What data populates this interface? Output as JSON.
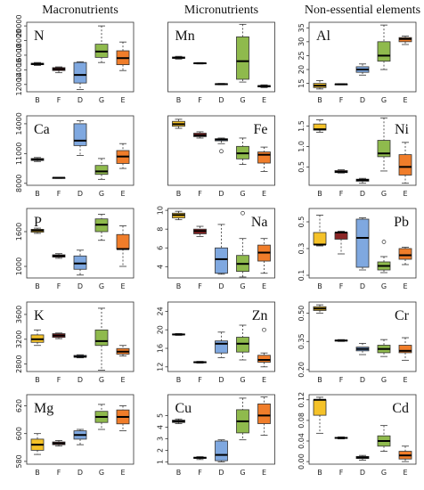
{
  "column_titles": [
    "Macronutrients",
    "Micronutrients",
    "Non-essential elements"
  ],
  "chart_data": [
    {
      "type": "box",
      "title": "N",
      "label_position": "left",
      "categories": [
        "B",
        "F",
        "D",
        "G",
        "E"
      ],
      "colors": [
        "#f5c228",
        "#8b2525",
        "#7fa8e0",
        "#8fba4d",
        "#f07d2a"
      ],
      "min": [
        14600,
        13600,
        11300,
        15000,
        13900
      ],
      "q1": [
        14700,
        13900,
        12200,
        15700,
        14700
      ],
      "median": [
        14800,
        14100,
        13300,
        16500,
        15600
      ],
      "q3": [
        14900,
        14300,
        15000,
        17500,
        16600
      ],
      "max": [
        15000,
        14400,
        15100,
        20000,
        17800
      ],
      "ylim": [
        11000,
        20500
      ],
      "yticks": [
        12000,
        14000,
        16000,
        18000,
        20000
      ]
    },
    {
      "type": "box",
      "title": "Ca",
      "label_position": "left",
      "categories": [
        "B",
        "F",
        "D",
        "G",
        "E"
      ],
      "colors": [
        "#f5c228",
        "#8b2525",
        "#7fa8e0",
        "#8fba4d",
        "#f07d2a"
      ],
      "min": [
        10200,
        8500,
        10800,
        8400,
        9500
      ],
      "q1": [
        10300,
        8540,
        11800,
        8900,
        10000
      ],
      "median": [
        10400,
        8560,
        12300,
        9200,
        10700
      ],
      "q3": [
        10500,
        8580,
        14000,
        9800,
        11300
      ],
      "max": [
        10600,
        8600,
        14300,
        10500,
        12000
      ],
      "ylim": [
        7800,
        14800
      ],
      "yticks": [
        8000,
        11000,
        14000
      ]
    },
    {
      "type": "box",
      "title": "P",
      "label_position": "left",
      "categories": [
        "B",
        "F",
        "D",
        "G",
        "E"
      ],
      "colors": [
        "#f5c228",
        "#8b2525",
        "#7fa8e0",
        "#8fba4d",
        "#f07d2a"
      ],
      "min": [
        1570,
        1140,
        850,
        1450,
        1000
      ],
      "q1": [
        1590,
        1160,
        950,
        1600,
        1300
      ],
      "median": [
        1620,
        1180,
        1050,
        1720,
        1300
      ],
      "q3": [
        1640,
        1200,
        1180,
        1820,
        1550
      ],
      "max": [
        1660,
        1220,
        1280,
        1900,
        1700
      ],
      "ylim": [
        800,
        2000
      ],
      "yticks": [
        1000,
        1600
      ]
    },
    {
      "type": "box",
      "title": "K",
      "label_position": "left",
      "categories": [
        "B",
        "F",
        "D",
        "G",
        "E"
      ],
      "colors": [
        "#f5c228",
        "#8b2525",
        "#7fa8e0",
        "#8fba4d",
        "#f07d2a"
      ],
      "min": [
        3100,
        3210,
        2900,
        2700,
        2930
      ],
      "q1": [
        3150,
        3230,
        2910,
        3100,
        2960
      ],
      "median": [
        3200,
        3260,
        2920,
        3170,
        3000
      ],
      "q3": [
        3270,
        3290,
        2940,
        3350,
        3050
      ],
      "max": [
        3350,
        3300,
        2950,
        3700,
        3100
      ],
      "ylim": [
        2680,
        3800
      ],
      "yticks": [
        2800,
        3200,
        3600
      ]
    },
    {
      "type": "box",
      "title": "Mg",
      "label_position": "left",
      "categories": [
        "B",
        "F",
        "D",
        "G",
        "E"
      ],
      "colors": [
        "#f5c228",
        "#8b2525",
        "#7fa8e0",
        "#8fba4d",
        "#f07d2a"
      ],
      "min": [
        585,
        591,
        592,
        603,
        602
      ],
      "q1": [
        588,
        592,
        596,
        608,
        607
      ],
      "median": [
        592,
        593,
        599,
        612,
        612
      ],
      "q3": [
        596,
        594,
        602,
        616,
        617
      ],
      "max": [
        600,
        595,
        603,
        621,
        620
      ],
      "ylim": [
        578,
        628
      ],
      "yticks": [
        580,
        600,
        620
      ]
    },
    {
      "type": "box",
      "title": "Mn",
      "label_position": "left",
      "categories": [
        "B",
        "F",
        "D",
        "G",
        "E"
      ],
      "colors": [
        "#f5c228",
        "#8b2525",
        "#7fa8e0",
        "#8fba4d",
        "#f07d2a"
      ],
      "min": [
        47,
        40,
        10,
        14,
        6
      ],
      "q1": [
        48,
        41,
        10.5,
        18,
        7
      ],
      "median": [
        49,
        41,
        11,
        44,
        8
      ],
      "q3": [
        50,
        41.5,
        11.5,
        79,
        9
      ],
      "max": [
        51,
        42,
        12,
        97,
        10
      ],
      "ylim": [
        0,
        100
      ]
    },
    {
      "type": "box",
      "title": "Fe",
      "label_position": "right",
      "categories": [
        "B",
        "F",
        "D",
        "G",
        "E"
      ],
      "colors": [
        "#f5c228",
        "#8b2525",
        "#7fa8e0",
        "#8fba4d",
        "#f07d2a"
      ],
      "min": [
        82,
        68,
        60,
        30,
        20
      ],
      "q1": [
        85,
        70,
        64,
        38,
        32
      ],
      "median": [
        88,
        72,
        66,
        46,
        44
      ],
      "q3": [
        92,
        75,
        67,
        56,
        48
      ],
      "max": [
        95,
        77,
        68,
        68,
        55
      ],
      "outliers": [
        [],
        [],
        [
          49
        ],
        [],
        []
      ],
      "ylim": [
        0,
        100
      ]
    },
    {
      "type": "box",
      "title": "Na",
      "label_position": "right",
      "categories": [
        "B",
        "F",
        "D",
        "G",
        "E"
      ],
      "colors": [
        "#f5c228",
        "#8b2525",
        "#7fa8e0",
        "#8fba4d",
        "#f07d2a"
      ],
      "min": [
        9,
        7.2,
        3.2,
        2.9,
        3.3
      ],
      "q1": [
        9.2,
        7.5,
        3.3,
        3.5,
        4.6
      ],
      "median": [
        9.5,
        7.8,
        4.8,
        4.3,
        5.5
      ],
      "q3": [
        9.7,
        8,
        6,
        5.2,
        6.3
      ],
      "max": [
        9.9,
        8.3,
        8.5,
        7,
        7
      ],
      "outliers": [
        [],
        [],
        [],
        [
          9.7
        ],
        []
      ],
      "ylim": [
        2.8,
        10.2
      ],
      "yticks": [
        4,
        6,
        8,
        10
      ]
    },
    {
      "type": "box",
      "title": "Zn",
      "label_position": "right",
      "categories": [
        "B",
        "F",
        "D",
        "G",
        "E"
      ],
      "colors": [
        "#f5c228",
        "#8b2525",
        "#7fa8e0",
        "#8fba4d",
        "#f07d2a"
      ],
      "min": [
        18.8,
        12.8,
        14,
        13.5,
        12
      ],
      "q1": [
        18.9,
        12.9,
        15,
        15.2,
        13
      ],
      "median": [
        19,
        13,
        17,
        17,
        13.5
      ],
      "q3": [
        19.1,
        13.1,
        17.6,
        18.4,
        14.5
      ],
      "max": [
        19.2,
        13.2,
        19.5,
        21,
        15
      ],
      "outliers": [
        [],
        [],
        [],
        [],
        [
          20
        ]
      ],
      "ylim": [
        11,
        26
      ],
      "yticks": [
        12,
        16,
        20,
        24
      ]
    },
    {
      "type": "box",
      "title": "Cu",
      "label_position": "left",
      "categories": [
        "B",
        "F",
        "D",
        "G",
        "E"
      ],
      "colors": [
        "#f5c228",
        "#8b2525",
        "#7fa8e0",
        "#8fba4d",
        "#f07d2a"
      ],
      "min": [
        4.3,
        1.2,
        1,
        2.9,
        3.3
      ],
      "q1": [
        4.4,
        1.3,
        1.1,
        3.5,
        4.3
      ],
      "median": [
        4.5,
        1.35,
        1.6,
        4.5,
        5
      ],
      "q3": [
        4.6,
        1.4,
        2.8,
        5.5,
        6
      ],
      "max": [
        4.7,
        1.45,
        2.9,
        6.5,
        6.6
      ],
      "ylim": [
        0.8,
        6.8
      ],
      "yticks": [
        1,
        2,
        3,
        4,
        5
      ]
    },
    {
      "type": "box",
      "title": "Al",
      "label_position": "left",
      "categories": [
        "B",
        "F",
        "D",
        "G",
        "E"
      ],
      "colors": [
        "#f5c228",
        "#8b2525",
        "#7fa8e0",
        "#8fba4d",
        "#f07d2a"
      ],
      "min": [
        13,
        14.5,
        18,
        20,
        29
      ],
      "q1": [
        13.5,
        14.6,
        19,
        23,
        30
      ],
      "median": [
        14.2,
        14.7,
        20,
        25,
        31
      ],
      "q3": [
        15,
        14.8,
        21,
        30,
        31.5
      ],
      "max": [
        16,
        14.9,
        22,
        36,
        32
      ],
      "ylim": [
        12,
        37
      ],
      "yticks": [
        15,
        20,
        25,
        30,
        35
      ]
    },
    {
      "type": "box",
      "title": "Ni",
      "label_position": "right",
      "categories": [
        "B",
        "F",
        "D",
        "G",
        "E"
      ],
      "colors": [
        "#f5c228",
        "#8b2525",
        "#7fa8e0",
        "#8fba4d",
        "#f07d2a"
      ],
      "min": [
        1.35,
        0.35,
        0.1,
        0.4,
        0.1
      ],
      "q1": [
        1.4,
        0.36,
        0.15,
        0.75,
        0.3
      ],
      "median": [
        1.42,
        0.38,
        0.18,
        0.83,
        0.5
      ],
      "q3": [
        1.55,
        0.41,
        0.2,
        1.15,
        0.8
      ],
      "max": [
        1.65,
        0.43,
        0.22,
        1.7,
        1.1
      ],
      "ylim": [
        0.05,
        1.75
      ],
      "yticks": [
        0.5,
        {
          "value": 1,
          "label": "1.0"
        },
        1.5
      ]
    },
    {
      "type": "box",
      "title": "Pb",
      "label_position": "right",
      "categories": [
        "B",
        "F",
        "D",
        "G",
        "E"
      ],
      "colors": [
        "#f5c228",
        "#8b2525",
        "#7fa8e0",
        "#8fba4d",
        "#f07d2a"
      ],
      "min": [
        0.32,
        0.26,
        0.14,
        0.12,
        0.18
      ],
      "q1": [
        0.33,
        0.37,
        0.16,
        0.14,
        0.22
      ],
      "median": [
        0.33,
        0.42,
        0.38,
        0.17,
        0.25
      ],
      "q3": [
        0.42,
        0.42,
        0.52,
        0.2,
        0.3
      ],
      "max": [
        0.55,
        0.43,
        0.53,
        0.24,
        0.31
      ],
      "outliers": [
        [],
        [],
        [],
        [
          0.35
        ],
        []
      ],
      "ylim": [
        0.08,
        0.6
      ],
      "yticks": [
        0.1,
        0.3,
        0.5
      ]
    },
    {
      "type": "box",
      "title": "Cr",
      "label_position": "right",
      "categories": [
        "B",
        "F",
        "D",
        "G",
        "E"
      ],
      "colors": [
        "#f5c228",
        "#8b2525",
        "#7fa8e0",
        "#8fba4d",
        "#f07d2a"
      ],
      "min": [
        0.5,
        0.35,
        0.28,
        0.27,
        0.25
      ],
      "q1": [
        0.515,
        0.352,
        0.3,
        0.29,
        0.29
      ],
      "median": [
        0.525,
        0.355,
        0.31,
        0.31,
        0.3
      ],
      "q3": [
        0.535,
        0.357,
        0.32,
        0.33,
        0.33
      ],
      "max": [
        0.545,
        0.36,
        0.34,
        0.36,
        0.37
      ],
      "ylim": [
        0.19,
        0.56
      ],
      "yticks": [
        {
          "value": 0.2,
          "label": "0.20"
        },
        0.35,
        {
          "value": 0.5,
          "label": "0.50"
        }
      ]
    },
    {
      "type": "box",
      "title": "Cd",
      "label_position": "right",
      "categories": [
        "B",
        "F",
        "D",
        "G",
        "E"
      ],
      "colors": [
        "#f5c228",
        "#8b2525",
        "#7fa8e0",
        "#8fba4d",
        "#f07d2a"
      ],
      "min": [
        0.055,
        0.044,
        0.003,
        0.02,
        0
      ],
      "q1": [
        0.09,
        0.045,
        0.006,
        0.03,
        0.005
      ],
      "median": [
        0.12,
        0.046,
        0.008,
        0.04,
        0.012
      ],
      "q3": [
        0.12,
        0.047,
        0.01,
        0.05,
        0.02
      ],
      "max": [
        0.125,
        0.048,
        0.012,
        0.07,
        0.03
      ],
      "ylim": [
        -0.005,
        0.13
      ],
      "yticks": [
        {
          "value": 0,
          "label": "0.00"
        },
        0.04,
        0.08,
        0.12
      ]
    }
  ]
}
